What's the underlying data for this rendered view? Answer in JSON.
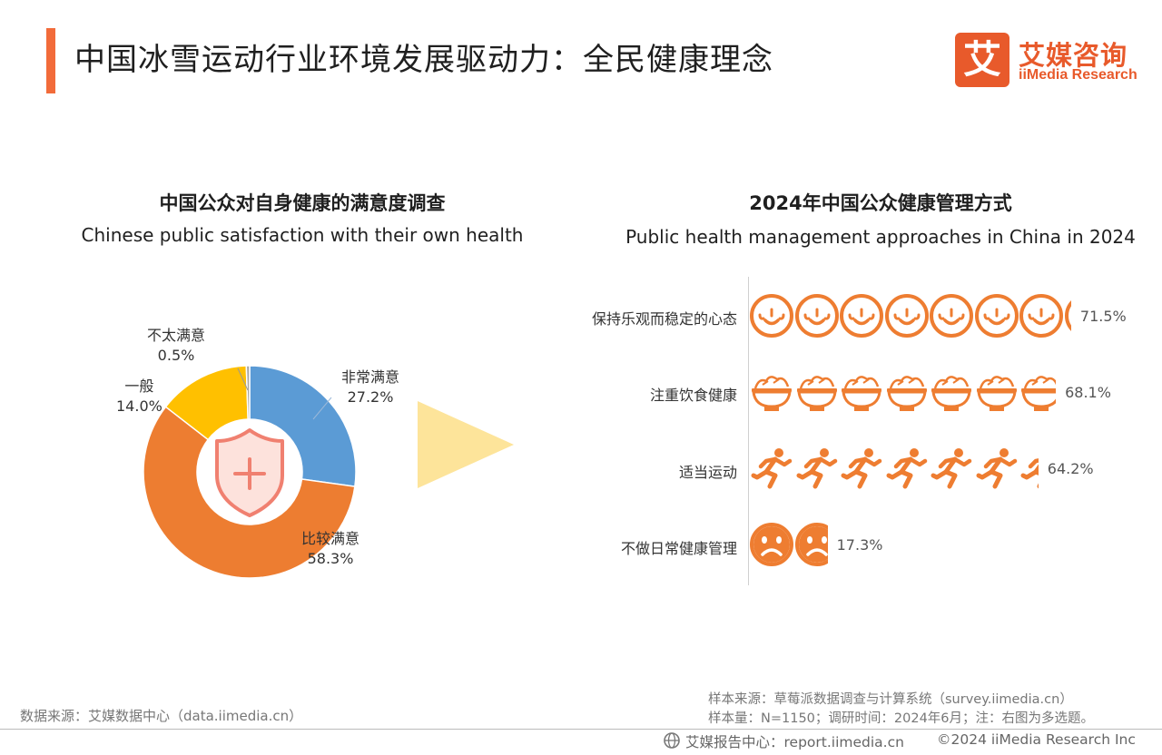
{
  "header": {
    "title": "中国冰雪运动行业环境发展驱动力：全民健康理念",
    "logo_mark": "艾",
    "logo_cn": "艾媒咨询",
    "logo_en": "iiMedia Research"
  },
  "left_chart_header": {
    "title_cn": "中国公众对自身健康的满意度调查",
    "title_en": "Chinese public satisfaction with their own health"
  },
  "right_chart_header": {
    "title_cn": "2024年中国公众健康管理方式",
    "title_en": "Public health management approaches in China in 2024"
  },
  "colors": {
    "accent": "#f26b3a",
    "brand": "#e85a2b",
    "blue": "#5b9bd5",
    "orange": "#ed7d31",
    "yellow": "#ffc000",
    "gray": "#a5a5a5",
    "icon_orange": "#ee7d31",
    "arrow": "#fde49a",
    "shield": "#f08070"
  },
  "chart_data": [
    {
      "type": "pie",
      "title": "中国公众对自身健康的满意度调查",
      "subtitle": "Chinese public satisfaction with their own health",
      "categories": [
        "非常满意",
        "比较满意",
        "一般",
        "不太满意"
      ],
      "values": [
        27.2,
        58.3,
        14.0,
        0.5
      ],
      "value_labels": [
        "27.2%",
        "58.3%",
        "14.0%",
        "0.5%"
      ],
      "colors": [
        "#5b9bd5",
        "#ed7d31",
        "#ffc000",
        "#a5a5a5"
      ],
      "center_icon": "shield-plus-icon"
    },
    {
      "type": "bar",
      "title": "2024年中国公众健康管理方式",
      "subtitle": "Public health management approaches in China in 2024",
      "categories": [
        "保持乐观而稳定的心态",
        "注重饮食健康",
        "适当运动",
        "不做日常健康管理"
      ],
      "values": [
        71.5,
        68.1,
        64.2,
        17.3
      ],
      "value_labels": [
        "71.5%",
        "68.1%",
        "64.2%",
        "17.3%"
      ],
      "icons": [
        "smiley-face-icon",
        "salad-bowl-icon",
        "runner-icon",
        "sad-face-icon"
      ],
      "unit": "%",
      "percent_per_icon": 10
    }
  ],
  "footer": {
    "source_left": "数据来源：艾媒数据中心（data.iimedia.cn）",
    "sample_source": "样本来源：草莓派数据调查与计算系统（survey.iimedia.cn）",
    "sample_info": "样本量：N=1150；调研时间：2024年6月；注：右图为多选题。",
    "report_center": "艾媒报告中心：report.iimedia.cn",
    "copyright": "©2024  iiMedia Research  Inc"
  }
}
